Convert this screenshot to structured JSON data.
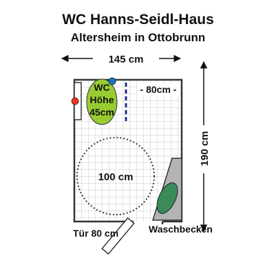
{
  "header": {
    "title": "WC Hanns-Seidl-Haus",
    "subtitle": "Altersheim in Ottobrunn"
  },
  "dimensions": {
    "width_label": "145 cm",
    "height_label": "190 cm",
    "clearance_label": "- 80cm -",
    "turning_circle_label": "100 cm",
    "door_label": "Tür 80 cm",
    "sink_label": "Waschbecken"
  },
  "toilet": {
    "line1": "WC",
    "line2": "Höhe",
    "line3": "45cm"
  },
  "colors": {
    "toilet": "#99cc33",
    "sink_basin": "#3a8a5a",
    "sink_counter": "#b3b3b3",
    "grid": "#c8c8c8",
    "grab_bar": "#1f2f8f",
    "blue_dot": "#1e73c8",
    "red_dot": "#e63a1e"
  }
}
